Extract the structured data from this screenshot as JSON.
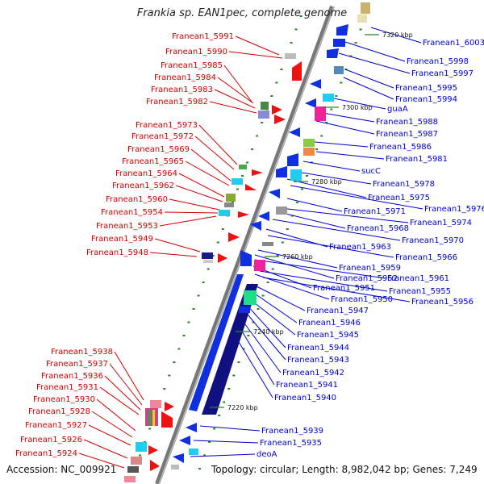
{
  "title": "Frankia sp. EAN1pec, complete genome",
  "accession": "Accession: NC_009921",
  "topology": "Topology: circular; Length: 8,982,042 bp; Genes: 7,249",
  "colors": {
    "left_label": "#cc0000",
    "right_label": "#0000cc",
    "backbone": "#777777",
    "tick": "#228822"
  },
  "kbp_marks": [
    "7320 kbp",
    "7300 kbp",
    "7280 kbp",
    "7260 kbp",
    "7240 kbp",
    "7220 kbp"
  ],
  "left_labels": [
    "Franean1_5991",
    "Franean1_5990",
    "Franean1_5985",
    "Franean1_5984",
    "Franean1_5983",
    "Franean1_5982",
    "Franean1_5973",
    "Franean1_5972",
    "Franean1_5969",
    "Franean1_5965",
    "Franean1_5964",
    "Franean1_5962",
    "Franean1_5960",
    "Franean1_5954",
    "Franean1_5953",
    "Franean1_5949",
    "Franean1_5948",
    "Franean1_5938",
    "Franean1_5937",
    "Franean1_5936",
    "Franean1_5931",
    "Franean1_5930",
    "Franean1_5928",
    "Franean1_5927",
    "Franean1_5926",
    "Franean1_5924"
  ],
  "right_labels": [
    "Franean1_6003",
    "Franean1_5998",
    "Franean1_5997",
    "Franean1_5995",
    "Franean1_5994",
    "guaA",
    "Franean1_5988",
    "Franean1_5987",
    "Franean1_5986",
    "Franean1_5981",
    "sucC",
    "Franean1_5978",
    "Franean1_5975",
    "Franean1_5976",
    "Franean1_5971",
    "Franean1_5974",
    "Franean1_5968",
    "Franean1_5970",
    "Franean1_5963",
    "Franean1_5966",
    "Franean1_5959",
    "Franean1_5952",
    "Franean1_5961",
    "Franean1_5951",
    "Franean1_5955",
    "Franean1_5950",
    "Franean1_5956",
    "Franean1_5947",
    "Franean1_5946",
    "Franean1_5945",
    "Franean1_5944",
    "Franean1_5943",
    "Franean1_5942",
    "Franean1_5941",
    "Franean1_5940",
    "Franean1_5939",
    "Franean1_5935",
    "deoA"
  ]
}
